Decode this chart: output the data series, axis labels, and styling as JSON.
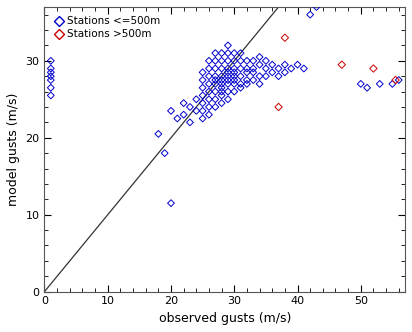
{
  "xlabel": "observed gusts (m/s)",
  "ylabel": "model gusts (m/s)",
  "xlim": [
    0,
    57
  ],
  "ylim": [
    0,
    37
  ],
  "xticks": [
    0,
    10,
    20,
    30,
    40,
    50
  ],
  "yticks": [
    0,
    10,
    20,
    30
  ],
  "blue_x": [
    1,
    1,
    1,
    1,
    1,
    1,
    1,
    18,
    19,
    20,
    20,
    21,
    22,
    22,
    23,
    23,
    24,
    24,
    25,
    25,
    25,
    25,
    25,
    25,
    25,
    26,
    26,
    26,
    26,
    26,
    26,
    26,
    26,
    27,
    27,
    27,
    27,
    27,
    27,
    27,
    27,
    27,
    28,
    28,
    28,
    28,
    28,
    28,
    28,
    28,
    28,
    28,
    29,
    29,
    29,
    29,
    29,
    29,
    29,
    29,
    29,
    29,
    30,
    30,
    30,
    30,
    30,
    30,
    30,
    30,
    31,
    31,
    31,
    31,
    31,
    31,
    32,
    32,
    32,
    32,
    32,
    33,
    33,
    33,
    33,
    34,
    34,
    34,
    34,
    35,
    35,
    35,
    36,
    36,
    37,
    37,
    38,
    38,
    39,
    40,
    41,
    42,
    43,
    50,
    51,
    53,
    55,
    56
  ],
  "blue_y": [
    25.5,
    26.5,
    27.5,
    28.0,
    28.5,
    29.0,
    30.0,
    20.5,
    18.0,
    11.5,
    23.5,
    22.5,
    23.0,
    24.5,
    22.0,
    24.0,
    23.5,
    25.0,
    22.5,
    23.5,
    24.5,
    25.5,
    26.5,
    27.5,
    28.5,
    23.0,
    24.0,
    25.0,
    26.0,
    27.0,
    28.0,
    29.0,
    30.0,
    24.0,
    25.0,
    26.0,
    27.0,
    27.5,
    28.0,
    29.0,
    30.0,
    31.0,
    24.5,
    25.5,
    26.0,
    26.5,
    27.0,
    27.5,
    28.0,
    29.0,
    30.0,
    31.0,
    25.0,
    26.0,
    27.0,
    27.5,
    28.0,
    28.5,
    29.0,
    30.0,
    31.0,
    32.0,
    26.0,
    27.0,
    27.5,
    28.0,
    28.5,
    29.0,
    30.0,
    31.0,
    26.5,
    27.0,
    28.0,
    29.0,
    30.0,
    31.0,
    27.0,
    27.5,
    28.5,
    29.0,
    30.0,
    27.5,
    28.5,
    29.0,
    30.0,
    27.0,
    28.0,
    29.5,
    30.5,
    28.0,
    29.0,
    30.0,
    28.5,
    29.5,
    28.0,
    29.0,
    28.5,
    29.5,
    29.0,
    29.5,
    29.0,
    36.0,
    37.0,
    27.0,
    26.5,
    27.0,
    27.0,
    27.5
  ],
  "red_x": [
    37.0,
    38.0,
    47.0,
    52.0,
    55.5
  ],
  "red_y": [
    24.0,
    33.0,
    29.5,
    29.0,
    27.5
  ],
  "blue_color": "#0000cc",
  "red_color": "#cc0000",
  "bg_color": "#ffffff",
  "line_color": "#333333",
  "legend_blue_label": "Stations <=500m",
  "legend_red_label": "Stations >500m"
}
